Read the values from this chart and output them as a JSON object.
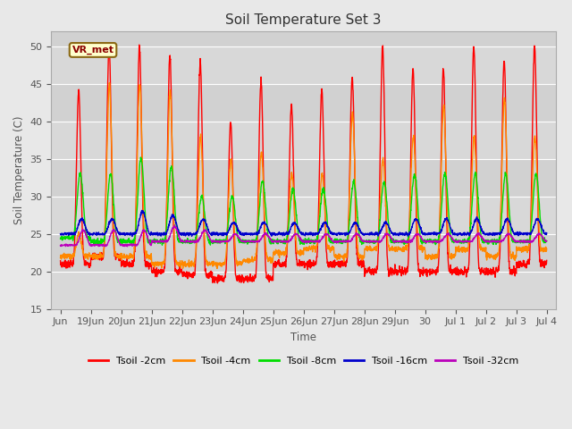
{
  "title": "Soil Temperature Set 3",
  "xlabel": "Time",
  "ylabel": "Soil Temperature (C)",
  "ylim": [
    15,
    52
  ],
  "yticks": [
    15,
    20,
    25,
    30,
    35,
    40,
    45,
    50
  ],
  "colors": {
    "Tsoil -2cm": "#ff0000",
    "Tsoil -4cm": "#ff8800",
    "Tsoil -8cm": "#00dd00",
    "Tsoil -16cm": "#0000cc",
    "Tsoil -32cm": "#bb00bb"
  },
  "background_color": "#e8e8e8",
  "plot_bg_color": "#d8d8d8",
  "annotation_text": "VR_met",
  "x_tick_labels": [
    "Jun",
    "19Jun",
    "20Jun",
    "21Jun",
    "22Jun",
    "23Jun",
    "24Jun",
    "25Jun",
    "26Jun",
    "27Jun",
    "28Jun",
    "29Jun",
    "30",
    "Jul 1",
    "Jul 2",
    "Jul 3",
    "Jul 4"
  ],
  "x_tick_positions": [
    0,
    1,
    2,
    3,
    4,
    5,
    6,
    7,
    8,
    9,
    10,
    11,
    12,
    13,
    14,
    15,
    16
  ]
}
